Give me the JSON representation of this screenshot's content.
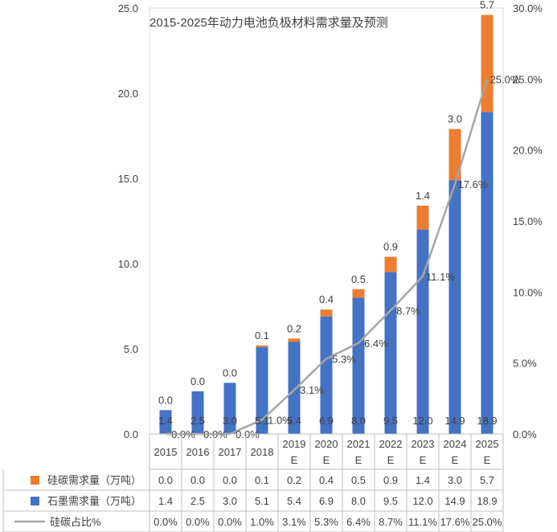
{
  "chart_data": {
    "type": "bar",
    "title": "2015-2025年动力电池负极材料需求量及预测",
    "categories": [
      [
        "2015"
      ],
      [
        "2016"
      ],
      [
        "2017"
      ],
      [
        "2018"
      ],
      [
        "2019",
        "E"
      ],
      [
        "2020",
        "E"
      ],
      [
        "2021",
        "E"
      ],
      [
        "2022",
        "E"
      ],
      [
        "2023",
        "E"
      ],
      [
        "2024",
        "E"
      ],
      [
        "2025",
        "E"
      ]
    ],
    "series": [
      {
        "name": "硅碳需求量（万吨）",
        "kind": "bar",
        "color": "#ED7D31",
        "values": [
          0.0,
          0.0,
          0.0,
          0.1,
          0.2,
          0.4,
          0.5,
          0.9,
          1.4,
          3.0,
          5.7
        ],
        "labels": [
          "0.0",
          "0.0",
          "0.0",
          "0.1",
          "0.2",
          "0.4",
          "0.5",
          "0.9",
          "1.4",
          "3.0",
          "5.7"
        ]
      },
      {
        "name": "石墨需求量（万吨）",
        "kind": "bar",
        "color": "#4472C4",
        "values": [
          1.4,
          2.5,
          3.0,
          5.1,
          5.4,
          6.9,
          8.0,
          9.5,
          12.0,
          14.9,
          18.9
        ],
        "labels": [
          "1.4",
          "2.5",
          "3.0",
          "5.1",
          "5.4",
          "6.9",
          "8.0",
          "9.5",
          "12.0",
          "14.9",
          "18.9"
        ]
      },
      {
        "name": "硅碳占比%",
        "kind": "line",
        "axis": "right",
        "color": "#A5A5A5",
        "values": [
          0.0,
          0.0,
          0.0,
          1.0,
          3.1,
          5.3,
          6.4,
          8.7,
          11.1,
          17.6,
          25.0
        ],
        "labels": [
          "0.0%",
          "0.0%",
          "0.0%",
          "1.0%",
          "3.1%",
          "5.3%",
          "6.4%",
          "8.7%",
          "11.1%",
          "17.6%",
          "25.0%"
        ]
      }
    ],
    "y_left": {
      "min": 0,
      "max": 25,
      "ticks": [
        "0.0",
        "5.0",
        "10.0",
        "15.0",
        "20.0",
        "25.0"
      ]
    },
    "y_right": {
      "min": 0,
      "max": 30,
      "ticks": [
        "0.0%",
        "5.0%",
        "10.0%",
        "15.0%",
        "20.0%",
        "25.0%",
        "30.0%"
      ]
    },
    "legend": "data-table",
    "grid": false
  }
}
